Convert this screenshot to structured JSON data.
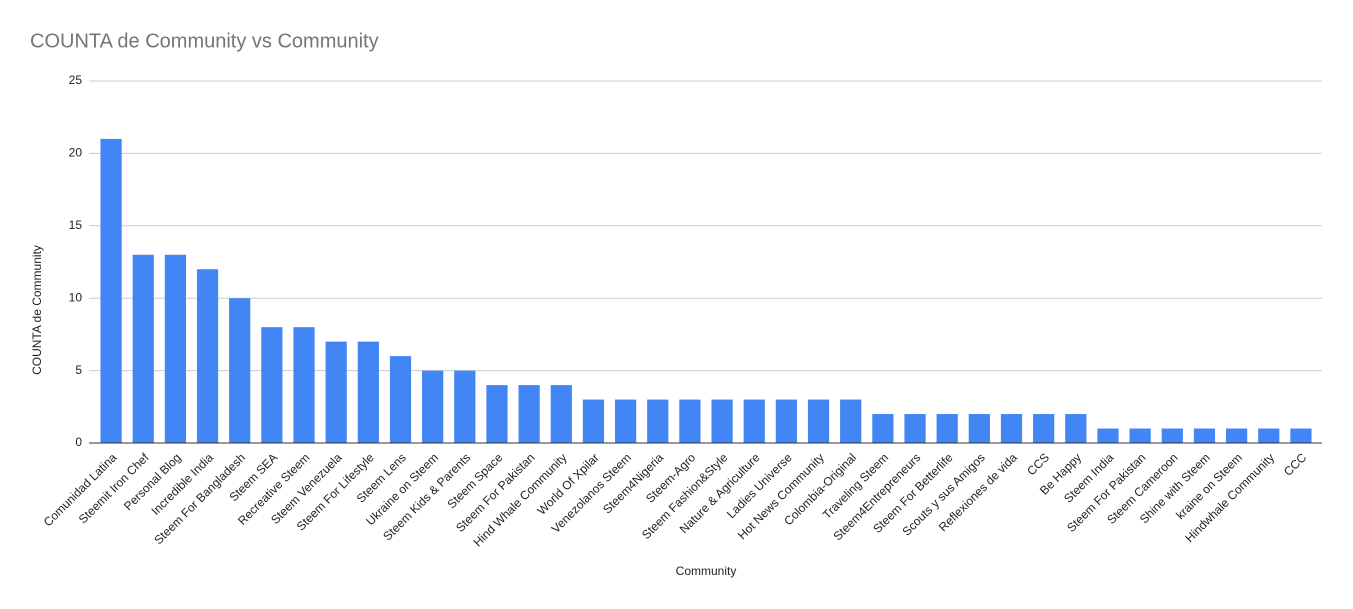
{
  "chart_data": {
    "type": "bar",
    "title": "COUNTA de Community vs Community",
    "x_label": "Community",
    "y_label": "COUNTA de Community",
    "categories": [
      "Comunidad Latina",
      "Steemit Iron Chef",
      "Personal Blog",
      "Incredible India",
      "Steem For Bangladesh",
      "Steem SEA",
      "Recreative Steem",
      "Steem Venezuela",
      "Steem For Lifestyle",
      "Steem Lens",
      "Ukraine on Steem",
      "Steem Kids & Parents",
      "Steem Space",
      "Steem For Pakistan",
      "Hind Whale Community",
      "World Of Xpilar",
      "Venezolanos Steem",
      "Steem4Nigeria",
      "Steem-Agro",
      "Steem Fashion&Style",
      "Nature & Agriculture",
      "Ladies Universe",
      "Hot News Community",
      "Colombia-Original",
      "Traveling Steem",
      "Steem4Entrepreneurs",
      "Steem For Betterlife",
      "Scouts y sus Amigos",
      "Reflexiones de vida",
      "CCS",
      "Be Happy",
      "Steem India",
      "Steem For Pakistan",
      "Steem Cameroon",
      "Shine with Steem",
      "kraine on Steem",
      "Hindwhale Community",
      "CCC"
    ],
    "values": [
      21,
      13,
      13,
      12,
      10,
      8,
      8,
      7,
      7,
      6,
      5,
      5,
      4,
      4,
      4,
      3,
      3,
      3,
      3,
      3,
      3,
      3,
      3,
      3,
      2,
      2,
      2,
      2,
      2,
      2,
      2,
      1,
      1,
      1,
      1,
      1,
      1,
      1
    ],
    "color": "#4285f4",
    "ylim": [
      0,
      25
    ],
    "yticks": [
      0,
      5,
      10,
      15,
      20,
      25
    ],
    "grid": true
  }
}
